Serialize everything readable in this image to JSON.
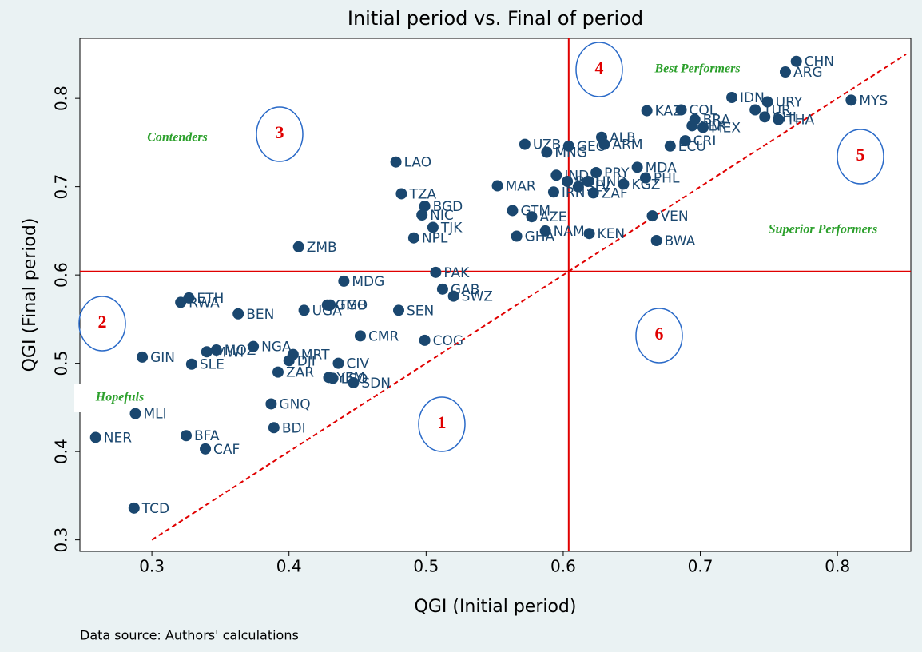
{
  "chart_data": {
    "type": "scatter",
    "title": "Initial period vs. Final of period",
    "x_label": "QGI (Initial period)",
    "y_label": "QGI (Final period)",
    "note": "Data source:  Authors' calculations",
    "color": "#1a476f",
    "xlim": [
      0.2475,
      0.8535
    ],
    "xticks": [
      0.3,
      0.4,
      0.5,
      0.6,
      0.7,
      0.8
    ],
    "ylim": [
      0.287,
      0.868
    ],
    "yticks": [
      0.3,
      0.4,
      0.5,
      0.6,
      0.7,
      0.8
    ],
    "vline": 0.604,
    "hline": 0.604,
    "diagonal": [
      [
        0.3,
        0.3
      ],
      [
        0.85,
        0.85
      ]
    ],
    "annotations": [
      "Contenders",
      "Best Performers",
      "Superior Performers",
      "Hopefuls",
      "1",
      "2",
      "3",
      "4",
      "5",
      "6"
    ],
    "labels": [
      "CHN",
      "ARG",
      "MYS",
      "UZB",
      "LAO",
      "TZA",
      "BGD",
      "NIC",
      "TJK",
      "NPL",
      "ZMB",
      "PAK",
      "GAB",
      "MAR",
      "GTM",
      "AZE",
      "GHA",
      "NAM",
      "KEN",
      "BWA",
      "VEN",
      "SWZ",
      "SEN",
      "COG",
      "CMR",
      "MDG",
      "TGO",
      "GMB",
      "UGA",
      "BEN",
      "ETH",
      "RWA",
      "MOZ",
      "MWI",
      "GIN",
      "SLE",
      "NGA",
      "MRT",
      "DJI",
      "CIV",
      "ZAR",
      "YEM",
      "SDN",
      "GNQ",
      "LSO",
      "MLI",
      "NER",
      "BFA",
      "CAF",
      "BDI",
      "TCD",
      "GEO",
      "MNG",
      "ALB",
      "ARM",
      "ECU",
      "CRI",
      "MEX",
      "COL",
      "KAZ",
      "IND",
      "PRY",
      "MDA",
      "PHL",
      "KGZ",
      "ZAF",
      "BOL",
      "IRN",
      "SLV",
      "HND",
      "IDN",
      "URY",
      "THA",
      "CHL",
      "PER",
      "BRA",
      "TUR"
    ],
    "x": [
      0.77,
      0.762,
      0.81,
      0.572,
      0.478,
      0.482,
      0.499,
      0.497,
      0.505,
      0.491,
      0.407,
      0.507,
      0.512,
      0.552,
      0.563,
      0.577,
      0.566,
      0.587,
      0.619,
      0.668,
      0.665,
      0.52,
      0.48,
      0.499,
      0.452,
      0.44,
      0.43,
      0.428,
      0.411,
      0.363,
      0.327,
      0.321,
      0.347,
      0.34,
      0.293,
      0.329,
      0.374,
      0.403,
      0.4,
      0.436,
      0.392,
      0.429,
      0.447,
      0.387,
      0.432,
      0.288,
      0.259,
      0.325,
      0.339,
      0.389,
      0.287,
      0.604,
      0.588,
      0.628,
      0.63,
      0.678,
      0.689,
      0.702,
      0.686,
      0.661,
      0.595,
      0.624,
      0.654,
      0.66,
      0.644,
      0.622,
      0.603,
      0.593,
      0.611,
      0.618,
      0.723,
      0.749,
      0.757,
      0.747,
      0.694,
      0.696,
      0.74
    ],
    "y": [
      0.842,
      0.83,
      0.798,
      0.748,
      0.728,
      0.692,
      0.678,
      0.668,
      0.654,
      0.642,
      0.632,
      0.603,
      0.584,
      0.701,
      0.673,
      0.666,
      0.644,
      0.65,
      0.647,
      0.639,
      0.667,
      0.576,
      0.56,
      0.526,
      0.531,
      0.593,
      0.566,
      0.566,
      0.56,
      0.556,
      0.574,
      0.569,
      0.515,
      0.513,
      0.507,
      0.499,
      0.519,
      0.51,
      0.503,
      0.5,
      0.49,
      0.484,
      0.478,
      0.454,
      0.483,
      0.443,
      0.416,
      0.418,
      0.403,
      0.427,
      0.336,
      0.746,
      0.739,
      0.756,
      0.748,
      0.746,
      0.752,
      0.767,
      0.787,
      0.786,
      0.713,
      0.716,
      0.722,
      0.71,
      0.703,
      0.693,
      0.706,
      0.694,
      0.7,
      0.706,
      0.801,
      0.796,
      0.776,
      0.779,
      0.769,
      0.776,
      0.787
    ]
  }
}
